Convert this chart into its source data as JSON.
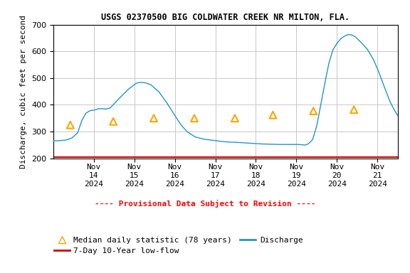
{
  "title": "USGS 02370500 BIG COLDWATER CREEK NR MILTON, FLA.",
  "ylabel": "Discharge, cubic feet per second",
  "provisional_text": "---- Provisional Data Subject to Revision ----",
  "ylim": [
    200,
    700
  ],
  "yticks": [
    200,
    300,
    400,
    500,
    600,
    700
  ],
  "background_color": "#ffffff",
  "grid_color": "#c8c8c8",
  "discharge_color": "#2196c8",
  "lowflow_color": "#cc0000",
  "lowflow_value": 205,
  "median_color": "#ffa500",
  "median_points": [
    {
      "day": -0.58,
      "value": 325
    },
    {
      "day": 0.48,
      "value": 338
    },
    {
      "day": 1.48,
      "value": 350
    },
    {
      "day": 2.48,
      "value": 350
    },
    {
      "day": 3.48,
      "value": 350
    },
    {
      "day": 4.42,
      "value": 362
    },
    {
      "day": 5.42,
      "value": 377
    },
    {
      "day": 6.42,
      "value": 382
    }
  ],
  "xlim": [
    -1.0,
    7.5
  ],
  "xtick_positions": [
    0,
    1,
    2,
    3,
    4,
    5,
    6,
    7
  ],
  "xtick_labels": [
    "Nov\n14\n2024",
    "Nov\n15\n2024",
    "Nov\n16\n2024",
    "Nov\n17\n2024",
    "Nov\n18\n2024",
    "Nov\n19\n2024",
    "Nov\n20\n2024",
    "Nov\n21\n2024"
  ]
}
